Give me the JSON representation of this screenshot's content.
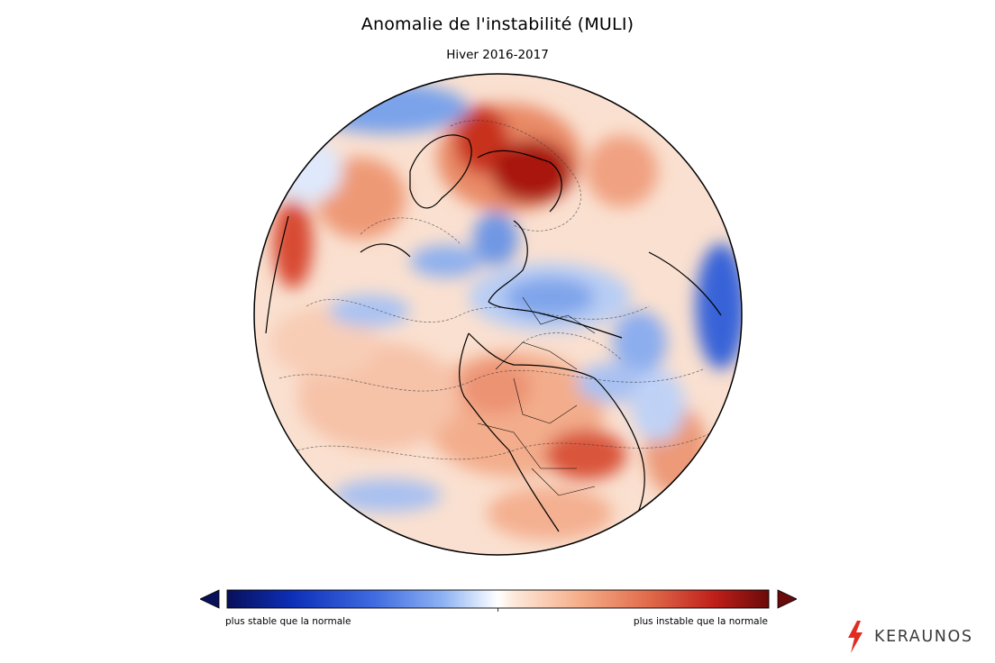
{
  "header": {
    "title": "Anomalie de l'instabilité (MULI)",
    "subtitle": "Hiver 2016-2017"
  },
  "colorbar": {
    "left_label": "plus stable que la normale",
    "right_label": "plus instable que la normale",
    "colors": [
      "#08105a",
      "#0d2fb8",
      "#3f6ae0",
      "#8fb3f3",
      "#e9f1fd",
      "#ffffff",
      "#fde8da",
      "#f6ae8a",
      "#e06a4a",
      "#bf1f1a",
      "#6a0a0a"
    ]
  },
  "map": {
    "projection": "orthographic",
    "palette": {
      "ocean_base": "#f9dccb",
      "stable": "#6f9ce8",
      "stable_strong": "#2f5fd6",
      "unstable": "#ef9a77",
      "unstable_strong": "#c52a1e"
    }
  },
  "brand": {
    "name": "KERAUNOS",
    "icon": "lightning-bolt-icon",
    "accent": "#e02d20"
  }
}
